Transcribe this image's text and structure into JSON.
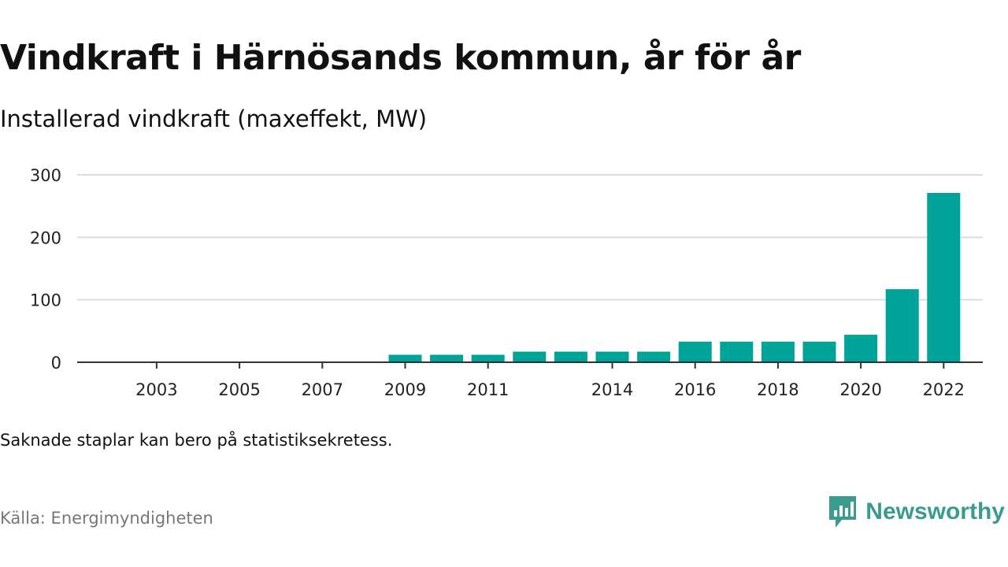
{
  "title": "Vindkraft i Härnösands kommun, år för år",
  "subtitle": "Installerad vindkraft (maxeffekt, MW)",
  "note": "Saknade staplar kan bero på statistiksekretess.",
  "source": "Källa: Energimyndigheten",
  "brand": {
    "name": "Newsworthy",
    "icon": "newsworthy-logo-icon",
    "color": "#3a9b8f"
  },
  "colors": {
    "bar": "#00a398",
    "grid": "#dddddd",
    "axis": "#333333"
  },
  "chart_data": {
    "type": "bar",
    "categories": [
      "2002",
      "2003",
      "2004",
      "2005",
      "2006",
      "2007",
      "2008",
      "2009",
      "2010",
      "2011",
      "2012",
      "2013",
      "2014",
      "2015",
      "2016",
      "2017",
      "2018",
      "2019",
      "2020",
      "2021",
      "2022"
    ],
    "values": [
      null,
      null,
      null,
      null,
      null,
      null,
      null,
      12,
      12,
      12,
      17,
      17,
      17,
      17,
      33,
      33,
      33,
      33,
      44,
      117,
      271
    ],
    "x_tick_labels": [
      "2003",
      "2005",
      "2007",
      "2009",
      "2011",
      "2014",
      "2016",
      "2018",
      "2020",
      "2022"
    ],
    "y_ticks": [
      0,
      100,
      200,
      300
    ],
    "ylim": [
      0,
      300
    ],
    "grid": true,
    "xlabel": "",
    "ylabel": ""
  }
}
